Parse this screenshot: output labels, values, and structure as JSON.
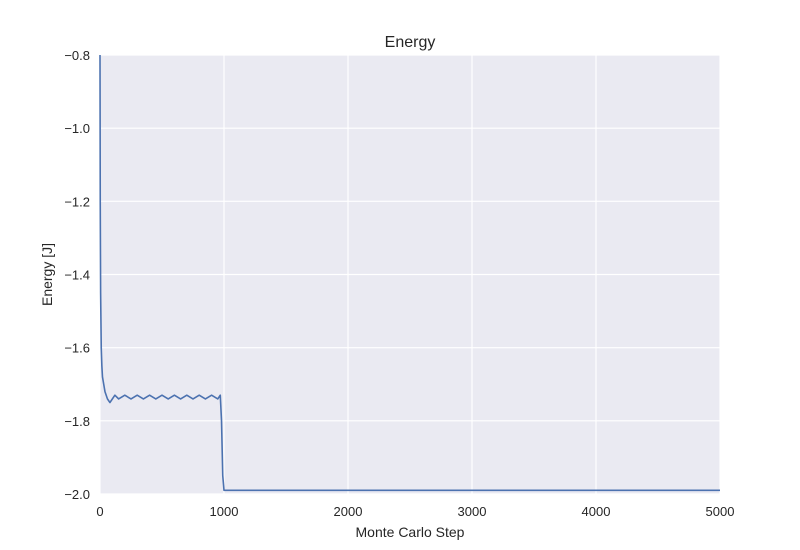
{
  "chart_data": {
    "type": "line",
    "title": "Energy",
    "xlabel": "Monte Carlo Step",
    "ylabel": "Energy [J]",
    "xlim": [
      0,
      5000
    ],
    "ylim": [
      -2.0,
      -0.8
    ],
    "x_ticks": [
      0,
      1000,
      2000,
      3000,
      4000,
      5000
    ],
    "x_tick_labels": [
      "0",
      "1000",
      "2000",
      "3000",
      "4000",
      "5000"
    ],
    "y_ticks": [
      -2.0,
      -1.8,
      -1.6,
      -1.4,
      -1.2,
      -1.0,
      -0.8
    ],
    "y_tick_labels": [
      "−2.0",
      "−1.8",
      "−1.6",
      "−1.4",
      "−1.2",
      "−1.0",
      "−0.8"
    ],
    "grid": true,
    "background": "#eaeaf2",
    "series": [
      {
        "color": "#4c72b0",
        "x": [
          0,
          2,
          5,
          10,
          15,
          20,
          30,
          40,
          60,
          80,
          100,
          120,
          150,
          200,
          250,
          300,
          350,
          400,
          450,
          500,
          550,
          600,
          650,
          700,
          750,
          800,
          850,
          900,
          950,
          970,
          980,
          990,
          1000,
          1050,
          1100,
          1200,
          1300,
          1400,
          1500,
          1600,
          1700,
          1800,
          1900,
          2000,
          2500,
          3000,
          3500,
          4000,
          4500,
          5000
        ],
        "y": [
          -0.8,
          -1.2,
          -1.45,
          -1.6,
          -1.65,
          -1.68,
          -1.7,
          -1.72,
          -1.74,
          -1.75,
          -1.74,
          -1.73,
          -1.74,
          -1.73,
          -1.74,
          -1.73,
          -1.74,
          -1.73,
          -1.74,
          -1.73,
          -1.74,
          -1.73,
          -1.74,
          -1.73,
          -1.74,
          -1.73,
          -1.74,
          -1.73,
          -1.74,
          -1.73,
          -1.8,
          -1.95,
          -1.99,
          -1.99,
          -1.99,
          -1.99,
          -1.99,
          -1.99,
          -1.99,
          -1.99,
          -1.99,
          -1.99,
          -1.99,
          -1.99,
          -1.99,
          -1.99,
          -1.99,
          -1.99,
          -1.99,
          -1.99
        ]
      }
    ]
  }
}
